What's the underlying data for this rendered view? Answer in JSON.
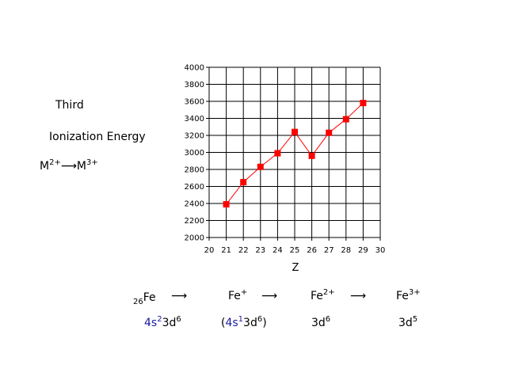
{
  "left_labels": {
    "line1": "Third",
    "line2": "Ionization Energy",
    "reaction": {
      "m1": "M",
      "sup1": "2+",
      "arrow": "⟶",
      "m2": "M",
      "sup2": "3+"
    }
  },
  "equation": {
    "items": [
      {
        "pre_sub": "26",
        "base": "Fe",
        "sup": ""
      },
      {
        "pre_sub": "",
        "base": "Fe",
        "sup": "+"
      },
      {
        "pre_sub": "",
        "base": "Fe",
        "sup": "2+"
      },
      {
        "pre_sub": "",
        "base": "Fe",
        "sup": "3+"
      }
    ],
    "arrow": "⟶"
  },
  "configs": {
    "c1": {
      "a": "4s",
      "a_sup": "2",
      "b": "3d",
      "b_sup": "6"
    },
    "c2": {
      "open": "(",
      "a": "4s",
      "a_sup": "1",
      "b": "3d",
      "b_sup": "6",
      "close": ")"
    },
    "c3": {
      "b": "3d",
      "b_sup": "6"
    },
    "c4": {
      "b": "3d",
      "b_sup": "5"
    }
  },
  "colors": {
    "series": "#ff0000",
    "grid": "#000000",
    "accent_blue": "#1a1aa0"
  },
  "chart_data": {
    "type": "line",
    "x": [
      21,
      22,
      23,
      24,
      25,
      26,
      27,
      28,
      29
    ],
    "series": [
      {
        "values": [
          2390,
          2650,
          2830,
          2990,
          3240,
          2960,
          3230,
          3390,
          3580
        ]
      }
    ],
    "xlabel": "Z",
    "ylabel": "",
    "xlim": [
      20,
      30
    ],
    "ylim": [
      2000,
      4000
    ],
    "x_ticks": [
      20,
      21,
      22,
      23,
      24,
      25,
      26,
      27,
      28,
      29,
      30
    ],
    "y_ticks": [
      2000,
      2200,
      2400,
      2600,
      2800,
      3000,
      3200,
      3400,
      3600,
      3800,
      4000
    ],
    "grid": true
  }
}
